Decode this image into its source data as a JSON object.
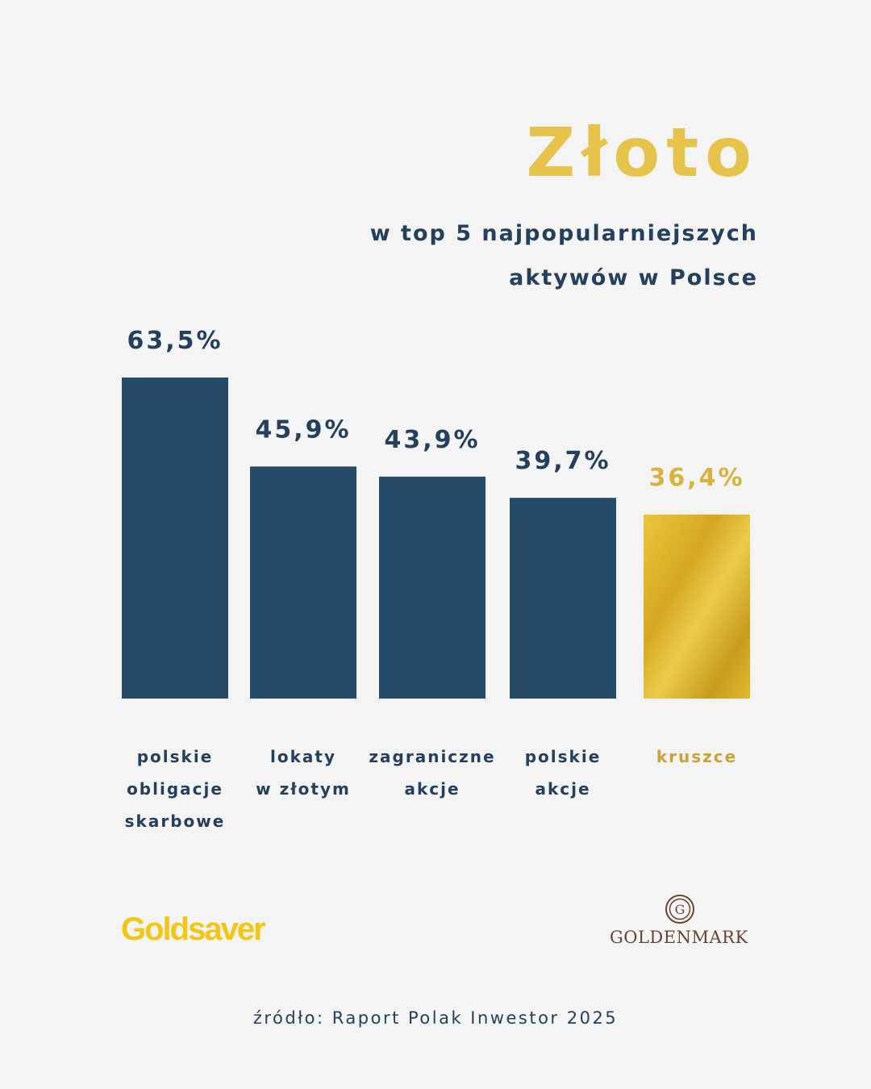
{
  "header": {
    "title": "Złoto",
    "subtitle_line1": "w top 5 najpopularniejszych",
    "subtitle_line2": "aktywów w Polsce"
  },
  "chart_data": {
    "type": "bar",
    "title": "Złoto",
    "subtitle": "w top 5 najpopularniejszych aktywów w Polsce",
    "categories": [
      [
        "polskie",
        "obligacje",
        "skarbowe"
      ],
      [
        "lokaty",
        "w złotym"
      ],
      [
        "zagraniczne",
        "akcje"
      ],
      [
        "polskie",
        "akcje"
      ],
      [
        "kruszce"
      ]
    ],
    "values": [
      63.5,
      45.9,
      43.9,
      39.7,
      36.4
    ],
    "value_labels": [
      "63,5%",
      "45,9%",
      "43,9%",
      "39,7%",
      "36,4%"
    ],
    "unit": "%",
    "ylim": [
      0,
      63.5
    ],
    "grid": false,
    "highlight_index": 4
  },
  "colors": {
    "bar": "#264b67",
    "highlight": "#d6aa24",
    "title": "#e6c34a",
    "text": "#24405e",
    "background": "#f4f4f4"
  },
  "logos": {
    "left": "Goldsaver",
    "right": "GOLDENMARK",
    "right_emblem": "G"
  },
  "footer": {
    "source": "źródło: Raport Polak Inwestor 2025"
  }
}
